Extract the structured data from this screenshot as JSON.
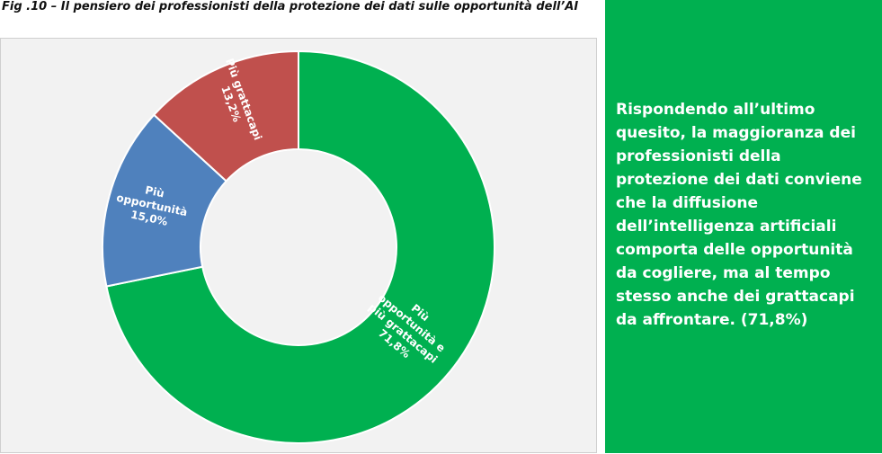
{
  "title": "Fig .10 – Il pensiero dei professionisti della protezione dei dati sulle opportunità dell’AI",
  "side_text": "Rispondendo all’ultimo quesito, la maggioranza dei professionisti della protezione dei dati conviene che la diffusione dell’intelligenza artificiali comporta delle opportunità da cogliere, ma al tempo stesso anche dei grattacapi da affrontare. (71,8%)",
  "colors": {
    "panel": "#00b050",
    "green": "#00b050",
    "blue": "#4f81bd",
    "red": "#c0504d"
  },
  "chart_data": {
    "type": "pie",
    "donut": true,
    "slices": [
      {
        "label": "Più opportunità e più grattacapi",
        "value": 71.8,
        "value_text": "71,8%",
        "color": "#00b050"
      },
      {
        "label": "Più opportunità",
        "value": 15.0,
        "value_text": "15,0%",
        "color": "#4f81bd"
      },
      {
        "label": "Più grattacapi",
        "value": 13.2,
        "value_text": "13,2%",
        "color": "#c0504d"
      }
    ]
  }
}
